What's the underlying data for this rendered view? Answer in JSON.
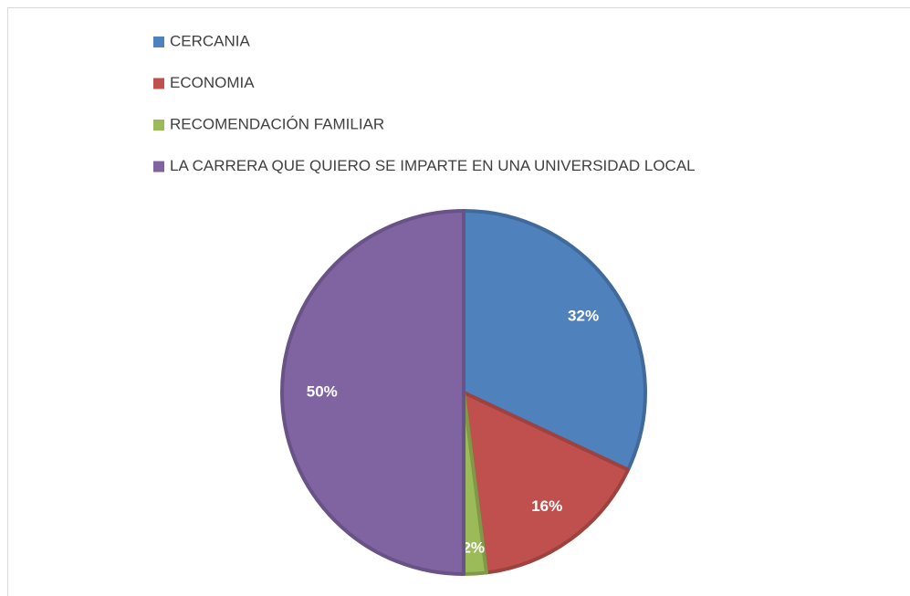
{
  "chart_data": {
    "type": "pie",
    "categories": [
      "CERCANIA",
      "ECONOMIA",
      "RECOMENDACIÓN FAMILIAR",
      "LA CARRERA QUE QUIERO SE IMPARTE EN UNA UNIVERSIDAD LOCAL"
    ],
    "values": [
      32,
      16,
      2,
      50
    ],
    "value_labels": [
      "32%",
      "16%",
      "2%",
      "50%"
    ],
    "colors": [
      "#4f81bd",
      "#c0504d",
      "#9bbb59",
      "#8064a2"
    ],
    "legend": "top"
  }
}
